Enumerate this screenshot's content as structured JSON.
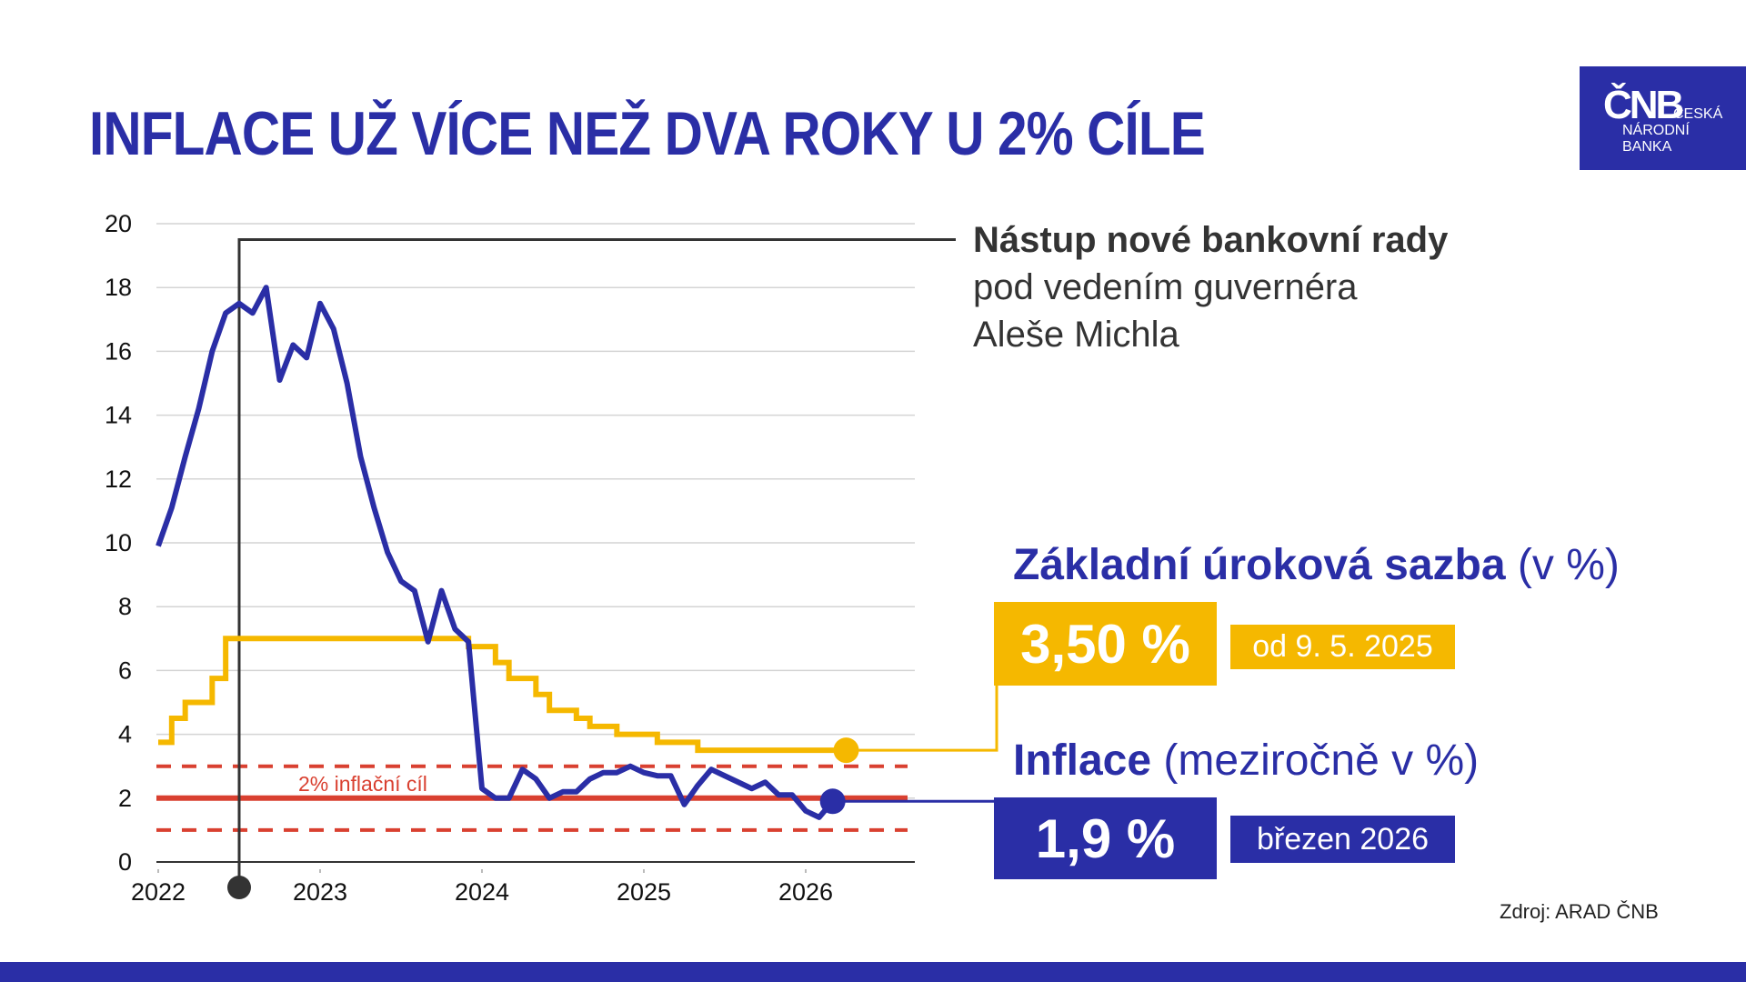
{
  "title": "INFLACE UŽ VÍCE NEŽ DVA ROKY U 2% CÍLE",
  "logo": {
    "mark": "ČNB",
    "line1": "ČESKÁ",
    "line2": "NÁRODNÍ",
    "line3": "BANKA"
  },
  "annotation": {
    "bold": "Nástup nové bankovní rady",
    "line2": "pod vedením guvernéra",
    "line3": "Aleše Michla"
  },
  "rate_panel": {
    "heading": "Základní úroková sazba",
    "unit": "(v %)",
    "value": "3,50 %",
    "since": "od 9. 5. 2025"
  },
  "inflation_panel": {
    "heading": "Inflace",
    "unit": "(meziročně v %)",
    "value": "1,9 %",
    "period": "březen 2026"
  },
  "source": "Zdroj: ARAD ČNB",
  "colors": {
    "inflation": "#2a2ea6",
    "rate": "#f5b800",
    "target": "#d94030",
    "brand": "#2a2ea6"
  },
  "chart_data": {
    "type": "line",
    "ylim": [
      0,
      20
    ],
    "yticks": [
      "0",
      "2",
      "4",
      "6",
      "8",
      "10",
      "12",
      "14",
      "16",
      "18",
      "20"
    ],
    "xticks": [
      "2022",
      "2023",
      "2024",
      "2025",
      "2026"
    ],
    "grid": true,
    "target": {
      "label": "2% inflační cíl",
      "value": 2,
      "band": [
        1,
        3
      ]
    },
    "event_date": "2022-07",
    "series": [
      {
        "key": "inflation",
        "style": "line",
        "x": [
          "2022-01",
          "2022-02",
          "2022-03",
          "2022-04",
          "2022-05",
          "2022-06",
          "2022-07",
          "2022-08",
          "2022-09",
          "2022-10",
          "2022-11",
          "2022-12",
          "2023-01",
          "2023-02",
          "2023-03",
          "2023-04",
          "2023-05",
          "2023-06",
          "2023-07",
          "2023-08",
          "2023-09",
          "2023-10",
          "2023-11",
          "2023-12",
          "2024-01",
          "2024-02",
          "2024-03",
          "2024-04",
          "2024-05",
          "2024-06",
          "2024-07",
          "2024-08",
          "2024-09",
          "2024-10",
          "2024-11",
          "2024-12",
          "2025-01",
          "2025-02",
          "2025-03",
          "2025-04",
          "2025-05",
          "2025-06",
          "2025-07",
          "2025-08",
          "2025-09",
          "2025-10",
          "2025-11",
          "2025-12",
          "2026-01",
          "2026-02",
          "2026-03"
        ],
        "values": [
          9.9,
          11.1,
          12.7,
          14.2,
          16.0,
          17.2,
          17.5,
          17.2,
          18.0,
          15.1,
          16.2,
          15.8,
          17.5,
          16.7,
          15.0,
          12.7,
          11.1,
          9.7,
          8.8,
          8.5,
          6.9,
          8.5,
          7.3,
          6.9,
          2.3,
          2.0,
          2.0,
          2.9,
          2.6,
          2.0,
          2.2,
          2.2,
          2.6,
          2.8,
          2.8,
          3.0,
          2.8,
          2.7,
          2.7,
          1.8,
          2.4,
          2.9,
          2.7,
          2.5,
          2.3,
          2.5,
          2.1,
          2.1,
          1.6,
          1.4,
          1.9
        ]
      },
      {
        "key": "rate",
        "style": "step",
        "x": [
          "2022-01",
          "2022-02",
          "2022-03",
          "2022-05",
          "2022-06",
          "2023-12",
          "2024-02",
          "2024-03",
          "2024-05",
          "2024-06",
          "2024-08",
          "2024-09",
          "2024-11",
          "2025-02",
          "2025-05",
          "2026-04"
        ],
        "values": [
          3.75,
          4.5,
          5.0,
          5.75,
          7.0,
          6.75,
          6.25,
          5.75,
          5.25,
          4.75,
          4.5,
          4.25,
          4.0,
          3.75,
          3.5,
          3.5
        ]
      }
    ]
  }
}
